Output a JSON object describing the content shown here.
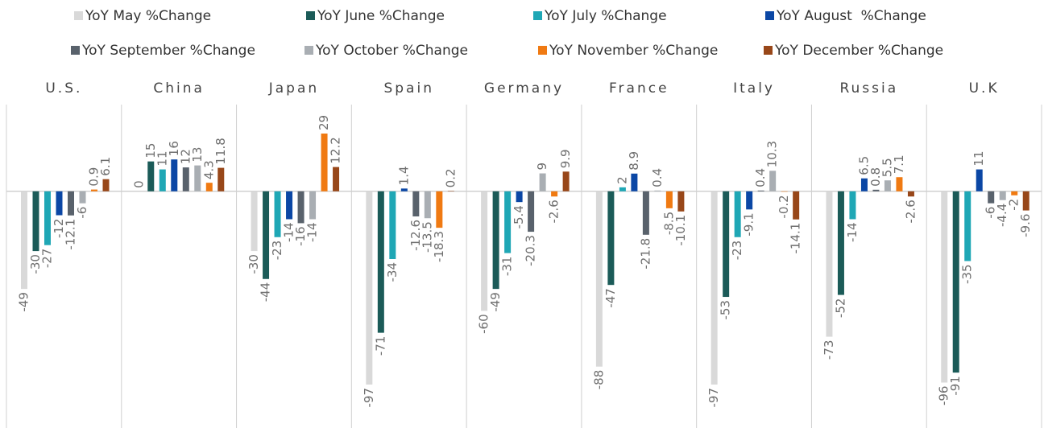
{
  "chart_data": {
    "type": "bar",
    "categories": [
      "U.S.",
      "China",
      "Japan",
      "Spain",
      "Germany",
      "France",
      "Italy",
      "Russia",
      "U.K"
    ],
    "series": [
      {
        "name": "YoY May %Change",
        "color": "#d9d9d9",
        "values": [
          -49,
          0,
          -30,
          -97,
          -60,
          -88,
          -97,
          -73,
          -96
        ]
      },
      {
        "name": "YoY June %Change",
        "color": "#1b5b58",
        "values": [
          -30,
          15,
          -44,
          -71,
          -49,
          -47,
          -53,
          -52,
          -91
        ]
      },
      {
        "name": "YoY July %Change",
        "color": "#1fa7b5",
        "values": [
          -27,
          11,
          -23,
          -34,
          -31,
          2,
          -23,
          -14,
          -35
        ]
      },
      {
        "name": "YoY August  %Change",
        "color": "#0b47a5",
        "values": [
          -12,
          16,
          -14,
          1.4,
          -5.4,
          8.9,
          -9.1,
          6.5,
          11
        ]
      },
      {
        "name": "YoY September %Change",
        "color": "#59626c",
        "values": [
          -12.1,
          12,
          -16,
          -12.6,
          -20.3,
          -21.8,
          0.4,
          0.8,
          -6
        ]
      },
      {
        "name": "YoY October %Change",
        "color": "#a9aeb3",
        "values": [
          -6,
          13,
          -14,
          -13.5,
          9,
          0.4,
          10.3,
          5.5,
          -4.4
        ]
      },
      {
        "name": "YoY November %Change",
        "color": "#f07a12",
        "values": [
          0.9,
          4.3,
          29,
          -18.3,
          -2.6,
          -8.5,
          -0.2,
          7.1,
          -2
        ]
      },
      {
        "name": "YoY December %Change",
        "color": "#984719",
        "values": [
          6.1,
          11.8,
          12.2,
          0.2,
          9.9,
          -10.1,
          -14.1,
          -2.6,
          -9.6
        ]
      }
    ]
  }
}
